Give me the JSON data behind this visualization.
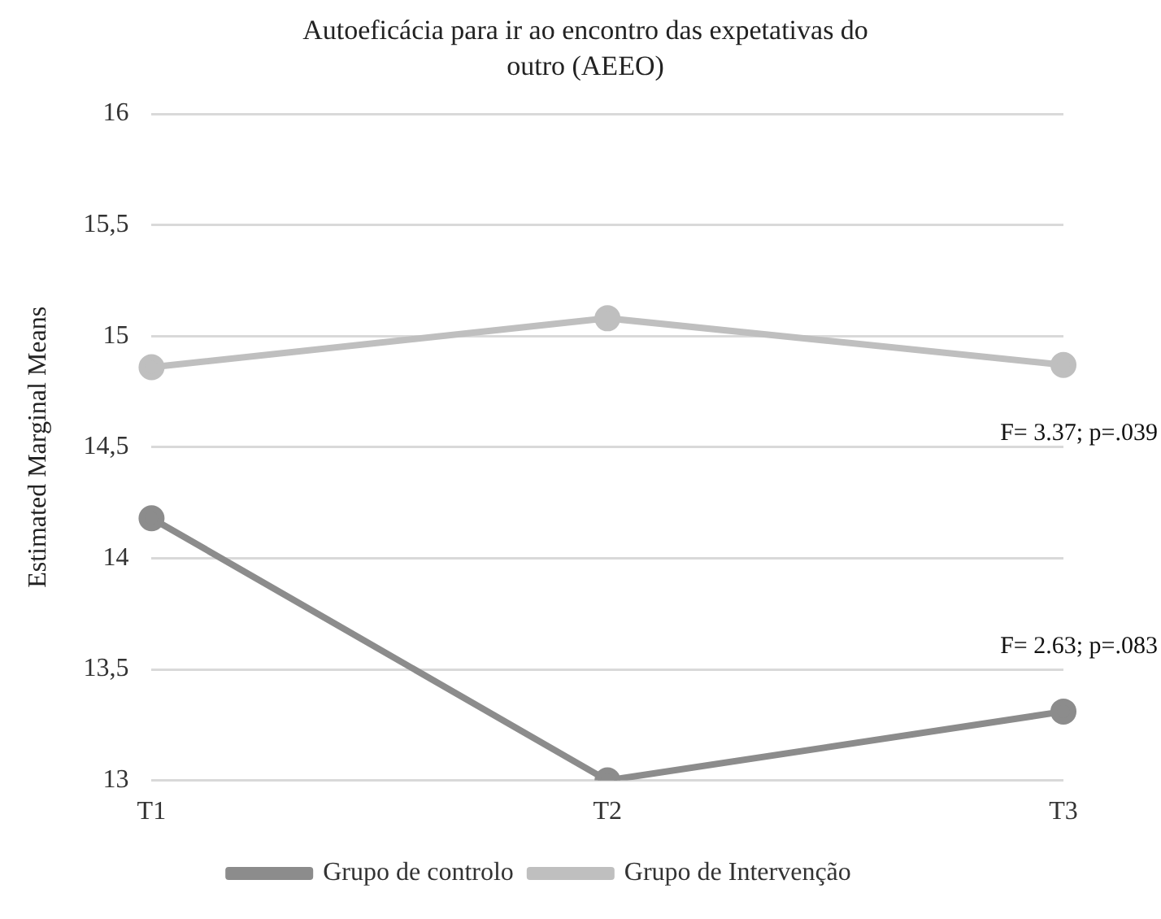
{
  "chart_data": {
    "type": "line",
    "title": "Autoeficácia para ir ao encontro das expetativas do outro (AEEO)",
    "ylabel": "Estimated Marginal Means",
    "categories": [
      "T1",
      "T2",
      "T3"
    ],
    "series": [
      {
        "name": "Grupo de controlo",
        "color": "#8c8c8c",
        "values": [
          14.18,
          13.0,
          13.31
        ]
      },
      {
        "name": "Grupo de Intervenção",
        "color": "#bfbfbf",
        "values": [
          14.86,
          15.08,
          14.87
        ]
      }
    ],
    "ylim": [
      13,
      16
    ],
    "yticks": [
      13,
      {
        "value": 13.5,
        "label": "13,5"
      },
      14,
      {
        "value": 14.5,
        "label": "14,5"
      },
      15,
      {
        "value": 15.5,
        "label": "15,5"
      },
      16
    ],
    "grid": "y",
    "legend": "bottom",
    "marker": "circle",
    "line_style": "solid",
    "annotations": [
      "F= 3.37; p=.039",
      "F= 2.63; p=.083"
    ]
  }
}
